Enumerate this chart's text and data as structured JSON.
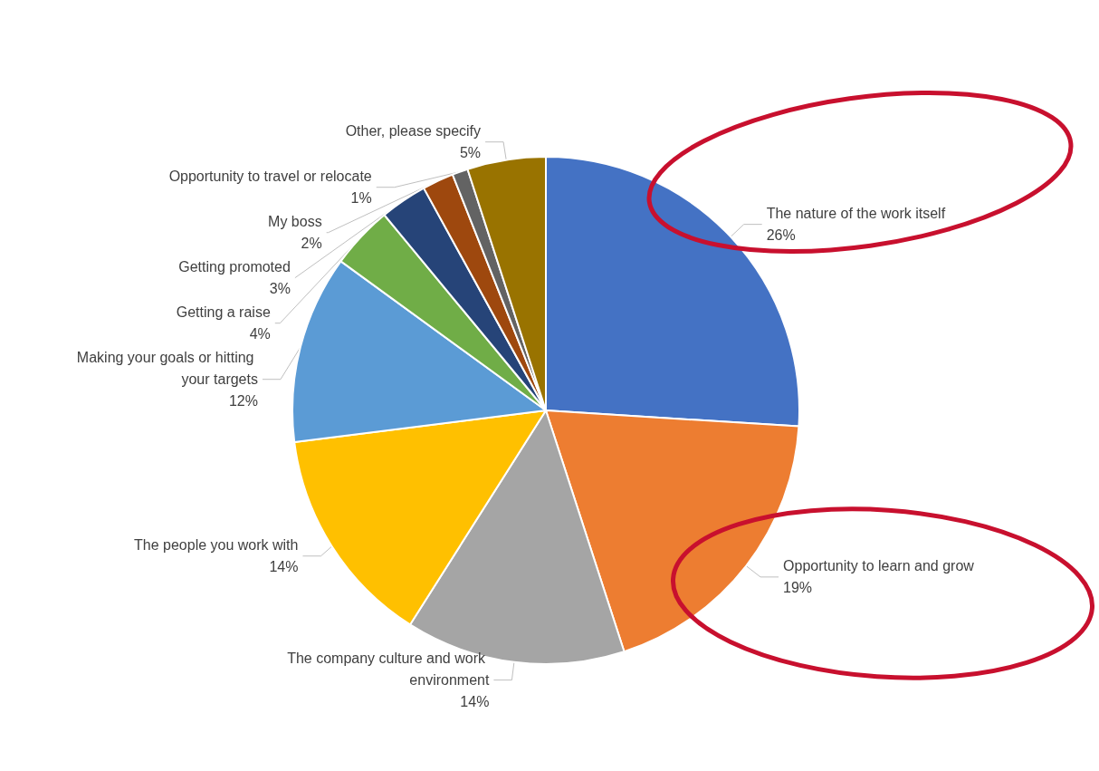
{
  "chart_data": {
    "type": "pie",
    "categories": [
      "The nature of the work itself",
      "Opportunity to learn and grow",
      "The company culture and work environment",
      "The people you work with",
      "Making your goals or hitting your targets",
      "Getting a raise",
      "Getting promoted",
      "My boss",
      "Opportunity to travel or relocate",
      "Other, please specify"
    ],
    "values": [
      26,
      19,
      14,
      14,
      12,
      4,
      3,
      2,
      1,
      5
    ],
    "colors": [
      "#4472c4",
      "#ed7d31",
      "#a5a5a5",
      "#ffc000",
      "#5b9bd5",
      "#70ad47",
      "#264478",
      "#9e480e",
      "#636363",
      "#997300"
    ],
    "value_labels": [
      "26%",
      "19%",
      "14%",
      "14%",
      "12%",
      "4%",
      "3%",
      "2%",
      "1%",
      "5%"
    ],
    "legend": false
  }
}
